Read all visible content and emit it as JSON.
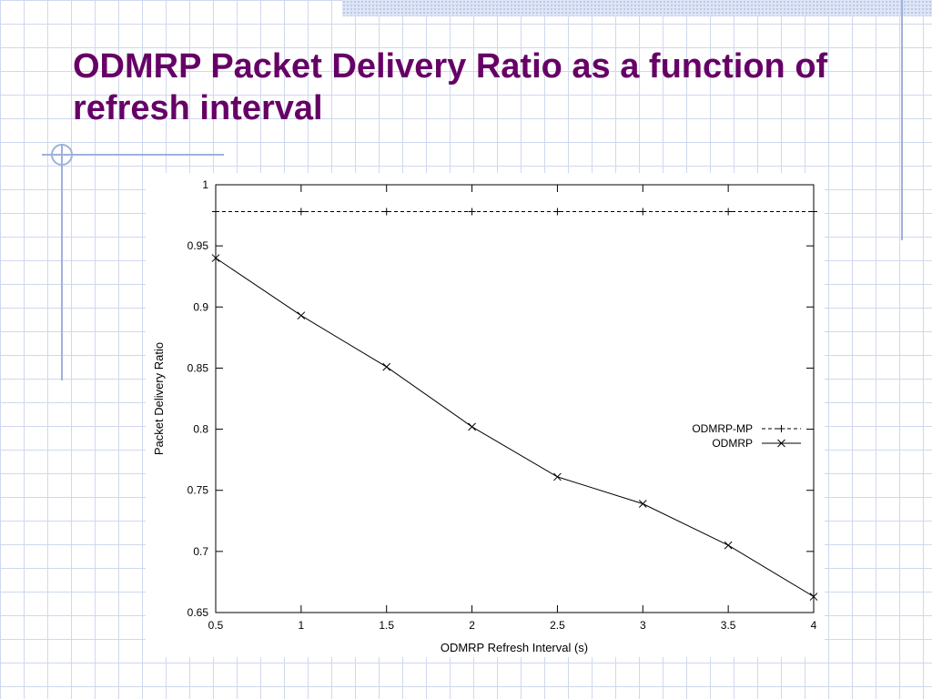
{
  "slide": {
    "title": "ODMRP Packet Delivery Ratio as a function of refresh interval"
  },
  "colors": {
    "title": "#660066",
    "grid_lines": "#cfd8ee",
    "accent_lines": "#9fb0dc"
  },
  "chart_data": {
    "type": "line",
    "xlabel": "ODMRP Refresh Interval (s)",
    "ylabel": "Packet Delivery Ratio",
    "xlim": [
      0.5,
      4
    ],
    "ylim": [
      0.65,
      1
    ],
    "x_ticks": [
      "0.5",
      "1",
      "1.5",
      "2",
      "2.5",
      "3",
      "3.5",
      "4"
    ],
    "y_ticks": [
      "0.65",
      "0.7",
      "0.75",
      "0.8",
      "0.85",
      "0.9",
      "0.95",
      "1"
    ],
    "grid": false,
    "legend_position": "right-middle",
    "x": [
      0.5,
      1,
      1.5,
      2,
      2.5,
      3,
      3.5,
      4
    ],
    "series": [
      {
        "name": "ODMRP-MP",
        "line_style": "dashed",
        "marker": "plus",
        "values": [
          0.978,
          0.978,
          0.978,
          0.978,
          0.978,
          0.978,
          0.978,
          0.978
        ]
      },
      {
        "name": "ODMRP",
        "line_style": "solid",
        "marker": "cross",
        "values": [
          0.94,
          0.893,
          0.851,
          0.802,
          0.761,
          0.739,
          0.705,
          0.663
        ]
      }
    ]
  }
}
